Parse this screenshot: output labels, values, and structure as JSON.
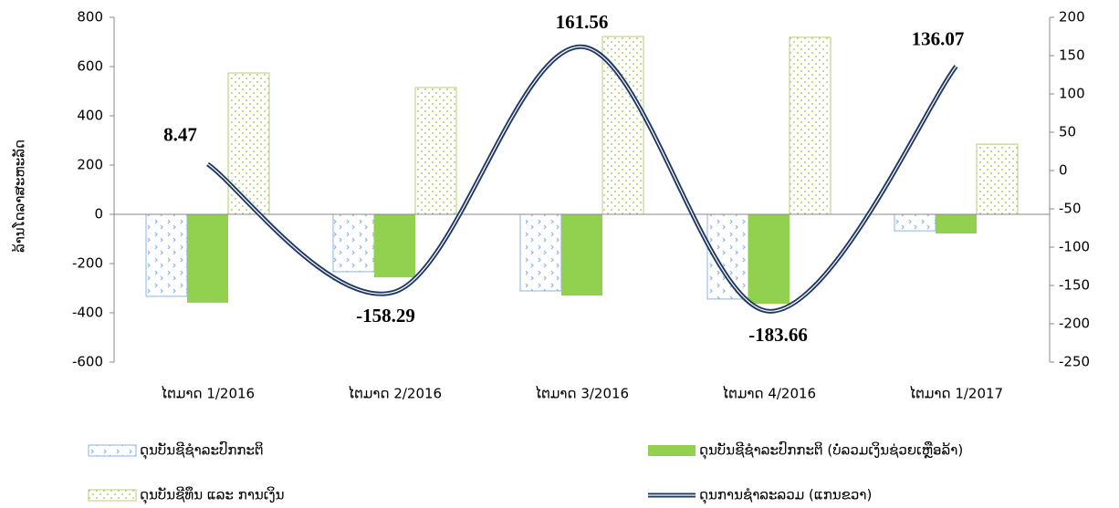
{
  "chart_data": {
    "type": "bar_line",
    "y_label": "ລ້ານໂດລາສະຫະລັດ",
    "categories": [
      "ໄຕມາດ 1/2016",
      "ໄຕມາດ 2/2016",
      "ໄຕມາດ 3/2016",
      "ໄຕມາດ 4/2016",
      "ໄຕມາດ 1/2017"
    ],
    "ylim": [
      -600,
      800
    ],
    "yticks": [
      -600,
      -400,
      -200,
      0,
      200,
      400,
      600,
      800
    ],
    "y2lim": [
      -250,
      200
    ],
    "y2ticks": [
      -250,
      -200,
      -150,
      -100,
      -50,
      0,
      50,
      100,
      150,
      200
    ],
    "series": [
      {
        "name": "ດຸນບັນຊີຊຳລະປົກກະຕິ",
        "kind": "bar",
        "color": "#8db3e2",
        "pattern": "arrows",
        "values": [
          -333,
          -233,
          -311,
          -344,
          -67
        ]
      },
      {
        "name": "ດຸນບັນຊີຊຳລະປົກກະຕິ (ບໍ່ລວມເງິນຊ່ວຍເຫຼືອລ້າ)",
        "kind": "bar",
        "color": "#92d050",
        "values": [
          -359,
          -256,
          -330,
          -363,
          -78
        ]
      },
      {
        "name": "ດຸນບັນຊີທຶນ ແລະ ການເງິນ",
        "kind": "bar",
        "color": "#b5cf7a",
        "pattern": "dots",
        "values": [
          574,
          515,
          722,
          719,
          285
        ]
      },
      {
        "name": "ດຸນການຊຳລະລວມ (ແກນຂວາ)",
        "kind": "line",
        "axis": "y2",
        "color": "#1f3864",
        "values": [
          8.47,
          -158.29,
          161.56,
          -183.66,
          136.07
        ]
      }
    ]
  }
}
